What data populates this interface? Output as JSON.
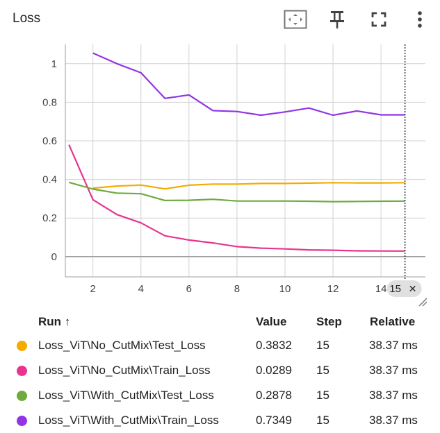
{
  "panel": {
    "title": "Loss"
  },
  "toolbar": [
    {
      "name": "fit-domain-icon"
    },
    {
      "name": "pin-icon"
    },
    {
      "name": "fullscreen-icon"
    },
    {
      "name": "more-vert-icon"
    }
  ],
  "colors": {
    "test_no_cutmix": "#f4ab00",
    "train_no_cutmix": "#e8348e",
    "test_cutmix": "#6eaa3d",
    "train_cutmix": "#9234e6",
    "grid": "#d2d2d2",
    "axis": "#9e9e9e"
  },
  "chart_data": {
    "type": "line",
    "title": "Loss",
    "xlabel": "",
    "ylabel": "",
    "xlim": [
      0.85,
      15.85
    ],
    "ylim": [
      -0.105,
      1.1
    ],
    "x_ticks": [
      2,
      4,
      6,
      8,
      10,
      12,
      14
    ],
    "y_ticks": [
      0,
      0.2,
      0.4,
      0.6,
      0.8,
      1
    ],
    "y_tick_labels": [
      "0",
      "0.2",
      "0.4",
      "0.6",
      "0.8",
      "1"
    ],
    "x_tick_labels": [
      "2",
      "4",
      "6",
      "8",
      "10",
      "12",
      "14"
    ],
    "hover_step": 15,
    "hover_label": "15",
    "grid": true,
    "series": [
      {
        "name": "Loss_ViT\\No_CutMix\\Test_Loss",
        "x": [
          2,
          3,
          4,
          5,
          6,
          7,
          8,
          9,
          10,
          11,
          12,
          13,
          14,
          15
        ],
        "values": [
          0.355,
          0.366,
          0.371,
          0.351,
          0.37,
          0.376,
          0.376,
          0.379,
          0.379,
          0.381,
          0.383,
          0.382,
          0.382,
          0.3832
        ]
      },
      {
        "name": "Loss_ViT\\No_CutMix\\Train_Loss",
        "x": [
          1,
          2,
          3,
          4,
          5,
          6,
          7,
          8,
          9,
          10,
          11,
          12,
          13,
          14,
          15
        ],
        "values": [
          0.58,
          0.295,
          0.218,
          0.175,
          0.108,
          0.086,
          0.071,
          0.052,
          0.044,
          0.04,
          0.035,
          0.033,
          0.03,
          0.029,
          0.0289
        ]
      },
      {
        "name": "Loss_ViT\\With_CutMix\\Test_Loss",
        "x": [
          1,
          2,
          3,
          4,
          5,
          6,
          7,
          8,
          9,
          10,
          11,
          12,
          13,
          14,
          15
        ],
        "values": [
          0.385,
          0.35,
          0.329,
          0.326,
          0.291,
          0.292,
          0.297,
          0.288,
          0.288,
          0.288,
          0.287,
          0.285,
          0.286,
          0.287,
          0.2878
        ]
      },
      {
        "name": "Loss_ViT\\With_CutMix\\Train_Loss",
        "x": [
          2,
          3,
          4,
          5,
          6,
          7,
          8,
          9,
          10,
          11,
          12,
          13,
          14,
          15
        ],
        "values": [
          1.055,
          1.0,
          0.953,
          0.82,
          0.838,
          0.757,
          0.752,
          0.733,
          0.75,
          0.77,
          0.733,
          0.755,
          0.735,
          0.7349
        ]
      }
    ]
  },
  "table": {
    "headers": {
      "run": "Run ↑",
      "value": "Value",
      "step": "Step",
      "relative": "Relative"
    },
    "rows": [
      {
        "run": "Loss_ViT\\No_CutMix\\Test_Loss",
        "value": "0.3832",
        "step": "15",
        "relative": "38.37 ms",
        "color": "#f4ab00"
      },
      {
        "run": "Loss_ViT\\No_CutMix\\Train_Loss",
        "value": "0.0289",
        "step": "15",
        "relative": "38.37 ms",
        "color": "#e8348e"
      },
      {
        "run": "Loss_ViT\\With_CutMix\\Test_Loss",
        "value": "0.2878",
        "step": "15",
        "relative": "38.37 ms",
        "color": "#6eaa3d"
      },
      {
        "run": "Loss_ViT\\With_CutMix\\Train_Loss",
        "value": "0.7349",
        "step": "15",
        "relative": "38.37 ms",
        "color": "#9234e6"
      }
    ]
  }
}
